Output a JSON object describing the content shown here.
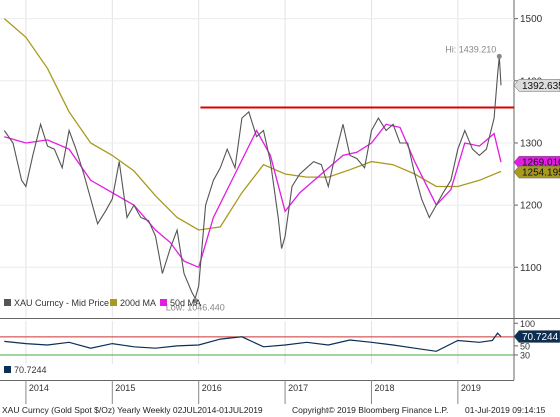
{
  "chart_data": {
    "type": "line",
    "price_panel": {
      "y_ticks": [
        1100,
        1200,
        1300,
        1400,
        1500
      ],
      "ylim": [
        1020,
        1530
      ],
      "x_ticks": [
        "2014",
        "2015",
        "2016",
        "2017",
        "2018",
        "2019"
      ],
      "x_range": [
        2013.7,
        2019.65
      ],
      "price_series": [
        [
          2013.75,
          1320
        ],
        [
          2013.85,
          1300
        ],
        [
          2013.95,
          1240
        ],
        [
          2014.0,
          1230
        ],
        [
          2014.08,
          1280
        ],
        [
          2014.17,
          1330
        ],
        [
          2014.25,
          1295
        ],
        [
          2014.33,
          1290
        ],
        [
          2014.42,
          1260
        ],
        [
          2014.5,
          1320
        ],
        [
          2014.58,
          1290
        ],
        [
          2014.67,
          1250
        ],
        [
          2014.75,
          1210
        ],
        [
          2014.83,
          1170
        ],
        [
          2014.92,
          1190
        ],
        [
          2015.0,
          1210
        ],
        [
          2015.08,
          1270
        ],
        [
          2015.17,
          1180
        ],
        [
          2015.25,
          1200
        ],
        [
          2015.33,
          1180
        ],
        [
          2015.42,
          1175
        ],
        [
          2015.5,
          1150
        ],
        [
          2015.58,
          1090
        ],
        [
          2015.67,
          1130
        ],
        [
          2015.75,
          1160
        ],
        [
          2015.83,
          1090
        ],
        [
          2015.92,
          1060
        ],
        [
          2015.96,
          1050
        ],
        [
          2016.0,
          1070
        ],
        [
          2016.08,
          1200
        ],
        [
          2016.17,
          1240
        ],
        [
          2016.25,
          1260
        ],
        [
          2016.33,
          1290
        ],
        [
          2016.42,
          1260
        ],
        [
          2016.5,
          1340
        ],
        [
          2016.58,
          1350
        ],
        [
          2016.67,
          1310
        ],
        [
          2016.75,
          1320
        ],
        [
          2016.83,
          1270
        ],
        [
          2016.92,
          1180
        ],
        [
          2016.96,
          1130
        ],
        [
          2017.0,
          1150
        ],
        [
          2017.08,
          1230
        ],
        [
          2017.17,
          1250
        ],
        [
          2017.25,
          1260
        ],
        [
          2017.33,
          1270
        ],
        [
          2017.42,
          1265
        ],
        [
          2017.5,
          1230
        ],
        [
          2017.58,
          1280
        ],
        [
          2017.67,
          1330
        ],
        [
          2017.75,
          1280
        ],
        [
          2017.83,
          1275
        ],
        [
          2017.92,
          1260
        ],
        [
          2018.0,
          1320
        ],
        [
          2018.08,
          1340
        ],
        [
          2018.17,
          1320
        ],
        [
          2018.25,
          1330
        ],
        [
          2018.33,
          1300
        ],
        [
          2018.42,
          1300
        ],
        [
          2018.5,
          1250
        ],
        [
          2018.58,
          1210
        ],
        [
          2018.67,
          1180
        ],
        [
          2018.75,
          1200
        ],
        [
          2018.83,
          1220
        ],
        [
          2018.92,
          1240
        ],
        [
          2019.0,
          1290
        ],
        [
          2019.08,
          1320
        ],
        [
          2019.17,
          1290
        ],
        [
          2019.25,
          1280
        ],
        [
          2019.33,
          1290
        ],
        [
          2019.42,
          1340
        ],
        [
          2019.46,
          1410
        ],
        [
          2019.48,
          1439.21
        ],
        [
          2019.5,
          1392.635
        ]
      ],
      "ma200_series": [
        [
          2013.75,
          1500
        ],
        [
          2014.0,
          1470
        ],
        [
          2014.25,
          1420
        ],
        [
          2014.5,
          1350
        ],
        [
          2014.75,
          1300
        ],
        [
          2015.0,
          1280
        ],
        [
          2015.25,
          1255
        ],
        [
          2015.5,
          1215
        ],
        [
          2015.75,
          1180
        ],
        [
          2016.0,
          1160
        ],
        [
          2016.25,
          1165
        ],
        [
          2016.5,
          1220
        ],
        [
          2016.75,
          1265
        ],
        [
          2017.0,
          1250
        ],
        [
          2017.25,
          1245
        ],
        [
          2017.5,
          1245
        ],
        [
          2017.75,
          1257
        ],
        [
          2018.0,
          1270
        ],
        [
          2018.25,
          1265
        ],
        [
          2018.5,
          1250
        ],
        [
          2018.75,
          1230
        ],
        [
          2019.0,
          1230
        ],
        [
          2019.25,
          1240
        ],
        [
          2019.5,
          1254.195
        ]
      ],
      "ma50_series": [
        [
          2013.75,
          1310
        ],
        [
          2014.0,
          1300
        ],
        [
          2014.25,
          1305
        ],
        [
          2014.5,
          1290
        ],
        [
          2014.75,
          1240
        ],
        [
          2015.0,
          1220
        ],
        [
          2015.25,
          1200
        ],
        [
          2015.5,
          1160
        ],
        [
          2015.67,
          1140
        ],
        [
          2015.83,
          1110
        ],
        [
          2016.0,
          1100
        ],
        [
          2016.17,
          1180
        ],
        [
          2016.42,
          1250
        ],
        [
          2016.67,
          1320
        ],
        [
          2016.83,
          1280
        ],
        [
          2017.0,
          1190
        ],
        [
          2017.17,
          1220
        ],
        [
          2017.42,
          1250
        ],
        [
          2017.67,
          1280
        ],
        [
          2017.83,
          1285
        ],
        [
          2018.0,
          1300
        ],
        [
          2018.17,
          1330
        ],
        [
          2018.33,
          1325
        ],
        [
          2018.5,
          1270
        ],
        [
          2018.75,
          1200
        ],
        [
          2018.92,
          1225
        ],
        [
          2019.08,
          1300
        ],
        [
          2019.25,
          1295
        ],
        [
          2019.42,
          1315
        ],
        [
          2019.5,
          1269.01
        ]
      ],
      "resistance_level": 1357,
      "hi_label": "Hi: 1439.210",
      "hi_point": [
        2019.48,
        1439.21
      ],
      "low_label": "Low: 1046.440",
      "low_point": [
        2015.96,
        1046.44
      ],
      "last_price_tag": "1392.635",
      "ma50_tag": "1269.010",
      "ma200_tag": "1254.195",
      "legend": [
        "XAU Curncy - Mid Price",
        "200d MA",
        "50d MA"
      ]
    },
    "rsi_panel": {
      "y_ticks": [
        30,
        50,
        100
      ],
      "ylim": [
        10,
        105
      ],
      "overbought": 70,
      "oversold": 30,
      "series": [
        [
          2013.75,
          60
        ],
        [
          2014.0,
          55
        ],
        [
          2014.25,
          52
        ],
        [
          2014.5,
          58
        ],
        [
          2014.75,
          45
        ],
        [
          2015.0,
          55
        ],
        [
          2015.25,
          48
        ],
        [
          2015.5,
          45
        ],
        [
          2015.75,
          50
        ],
        [
          2016.0,
          52
        ],
        [
          2016.25,
          65
        ],
        [
          2016.5,
          70
        ],
        [
          2016.75,
          48
        ],
        [
          2017.0,
          52
        ],
        [
          2017.25,
          58
        ],
        [
          2017.5,
          52
        ],
        [
          2017.75,
          63
        ],
        [
          2018.0,
          58
        ],
        [
          2018.25,
          52
        ],
        [
          2018.5,
          45
        ],
        [
          2018.75,
          38
        ],
        [
          2019.0,
          62
        ],
        [
          2019.25,
          58
        ],
        [
          2019.4,
          62
        ],
        [
          2019.46,
          78
        ],
        [
          2019.5,
          70.7244
        ]
      ],
      "last_value_tag": "70.7244",
      "legend": "70.7244"
    },
    "colors": {
      "price": "#555555",
      "ma200": "#a89a20",
      "ma50": "#e21de2",
      "resistance": "#dd0000",
      "rsi_line": "#0b2f55",
      "overbought": "#cc3333",
      "oversold": "#44aa44",
      "tag_gray": "#dcdcdc"
    }
  },
  "footer": {
    "left": "XAU Curncy (Gold Spot   $/Oz) Yearly  Weekly 02JUL2014-01JUL2019",
    "middle": "Copyright© 2019 Bloomberg Finance L.P.",
    "right": "01-Jul-2019 09:14:15"
  }
}
